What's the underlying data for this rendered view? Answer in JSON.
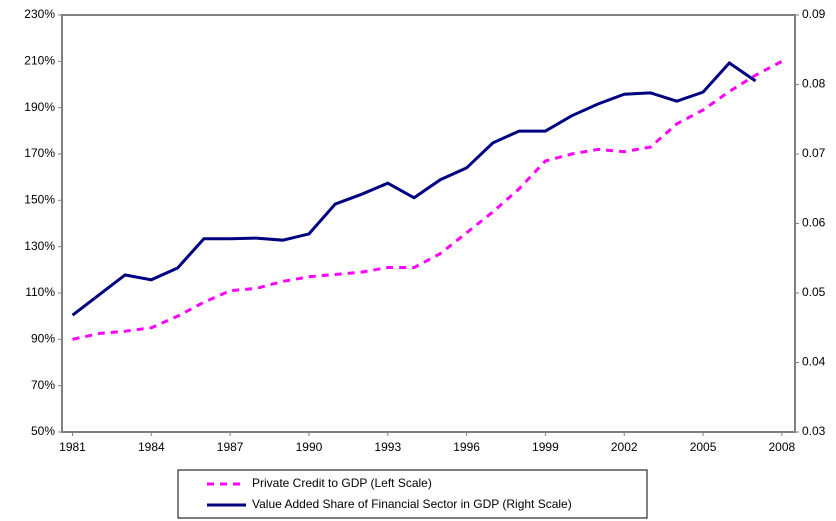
{
  "chart_data": {
    "type": "line",
    "x": [
      1981,
      1982,
      1983,
      1984,
      1985,
      1986,
      1987,
      1988,
      1989,
      1990,
      1991,
      1992,
      1993,
      1994,
      1995,
      1996,
      1997,
      1998,
      1999,
      2000,
      2001,
      2002,
      2003,
      2004,
      2005,
      2006,
      2007,
      2008
    ],
    "xlim": [
      1980.6,
      2008.5
    ],
    "xticks": [
      1981,
      1984,
      1987,
      1990,
      1993,
      1996,
      1999,
      2002,
      2005,
      2008
    ],
    "ylim": [
      50,
      230
    ],
    "yticks": [
      {
        "value": 50,
        "label": "50%"
      },
      {
        "value": 70,
        "label": "70%"
      },
      {
        "value": 90,
        "label": "90%"
      },
      {
        "value": 110,
        "label": "110%"
      },
      {
        "value": 130,
        "label": "130%"
      },
      {
        "value": 150,
        "label": "150%"
      },
      {
        "value": 170,
        "label": "170%"
      },
      {
        "value": 190,
        "label": "190%"
      },
      {
        "value": 210,
        "label": "210%"
      },
      {
        "value": 230,
        "label": "230%"
      }
    ],
    "y2lim": [
      0.03,
      0.09
    ],
    "y2ticks": [
      0.03,
      0.04,
      0.05,
      0.06,
      0.07,
      0.08,
      0.09
    ],
    "legend": "bottom",
    "series": [
      {
        "name": "Private Credit to GDP (Left Scale)",
        "color": "#ff00ff",
        "dashed": true,
        "values": [
          90,
          92.5,
          93.5,
          95,
          100,
          106,
          111,
          112,
          115,
          117,
          118,
          119,
          121,
          121,
          127,
          136,
          145,
          155,
          167,
          170,
          172,
          171,
          173,
          183,
          189,
          197,
          204,
          210
        ]
      },
      {
        "name": "Value Added Share of Financial Sector in GDP (Right Scale)",
        "color": "#000080",
        "axis": "y2",
        "values": [
          0.0468,
          0.0497,
          0.0526,
          0.0519,
          0.0536,
          0.0578,
          0.0578,
          0.0579,
          0.0576,
          0.0585,
          0.0628,
          0.0642,
          0.0658,
          0.0637,
          0.0663,
          0.068,
          0.0716,
          0.0733,
          0.0733,
          0.0755,
          0.0772,
          0.0786,
          0.0788,
          0.0776,
          0.0789,
          0.0831,
          0.0805,
          null
        ]
      }
    ]
  }
}
